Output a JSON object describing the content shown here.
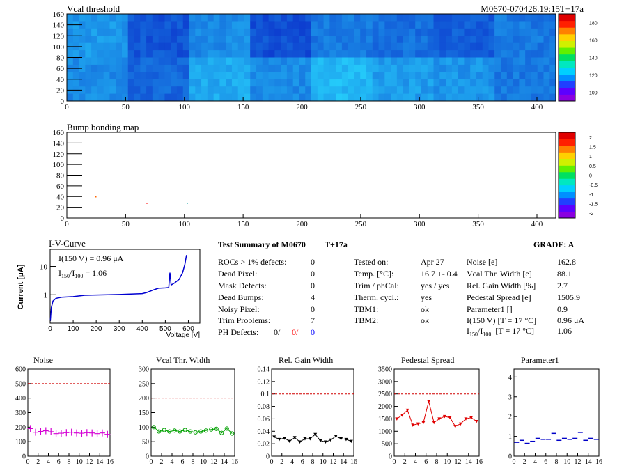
{
  "header": {
    "map1_title": "Vcal threshold",
    "module_tag": "M0670-070426.19:15T+17a",
    "map2_title": "Bump bonding map"
  },
  "maps": {
    "x_ticks": [
      "0",
      "50",
      "100",
      "150",
      "200",
      "250",
      "300",
      "350",
      "400"
    ],
    "y_ticks": [
      "0",
      "20",
      "40",
      "60",
      "80",
      "100",
      "120",
      "140",
      "160"
    ],
    "map1_colorbar": [
      "100",
      "120",
      "140",
      "160",
      "180"
    ],
    "map2_colorbar": [
      "-2",
      "-1.5",
      "-1",
      "-0.5",
      "0",
      "0.5",
      "1",
      "1.5",
      "2"
    ]
  },
  "iv": {
    "title": "I-V-Curve",
    "ylabel": "Current [μA]",
    "xlabel": "Voltage [V]",
    "annot1": "I(150 V) = 0.96 μA",
    "annot2_prefix": "I",
    "annot2_sub1": "150",
    "annot2_mid": "/I",
    "annot2_sub2": "100",
    "annot2_val": " = 1.06",
    "x_ticks": [
      "0",
      "100",
      "200",
      "300",
      "400",
      "500",
      "600"
    ],
    "y_ticks": [
      "1",
      "10"
    ]
  },
  "summary": {
    "title": "Test Summary of M0670",
    "tag": "T+17a",
    "grade": "GRADE:  A",
    "left_labels": [
      "ROCs > 1% defects:",
      "Dead Pixel:",
      "Mask Defects:",
      "Dead Bumps:",
      "Noisy Pixel:",
      "Trim Problems:",
      "PH Defects:"
    ],
    "left_values": [
      "0",
      "0",
      "0",
      "4",
      "0",
      "7"
    ],
    "ph_values": [
      "0/",
      "0/",
      "0"
    ],
    "ph_colors": [
      "#000000",
      "#ff0000",
      "#0000ff"
    ],
    "mid_labels": [
      "Tested on:",
      "Temp. [°C]:",
      "Trim / phCal:",
      "Therm. cycl.:",
      "TBM1:",
      "TBM2:"
    ],
    "mid_values": [
      "Apr 27",
      "16.7 +- 0.4",
      "yes / yes",
      "yes",
      "ok",
      "ok"
    ],
    "right_labels": [
      "Noise [e]",
      "Vcal Thr. Width [e]",
      "Rel. Gain Width [%]",
      "Pedestal Spread [e]",
      "Parameter1 []",
      "I(150 V) [T = 17 °C]"
    ],
    "right_values": [
      "162.8",
      "88.1",
      "2.7",
      "1505.9",
      "0.9",
      "0.96 μA"
    ],
    "ratio_label_i": "I",
    "ratio_label_s1": "150",
    "ratio_label_m": "/I",
    "ratio_label_s2": "100",
    "ratio_label_t": "  [T = 17 °C]",
    "ratio_value": "1.06"
  },
  "chart_data": [
    {
      "type": "scatter",
      "title": "Noise",
      "x": [
        0,
        1,
        2,
        3,
        4,
        5,
        6,
        7,
        8,
        9,
        10,
        11,
        12,
        13,
        14,
        15
      ],
      "values": [
        190,
        165,
        170,
        175,
        168,
        155,
        158,
        162,
        165,
        160,
        158,
        162,
        160,
        155,
        160,
        150
      ],
      "ylim": [
        0,
        600
      ],
      "threshold": 500,
      "y_ticks": [
        "0",
        "100",
        "200",
        "300",
        "400",
        "500",
        "600"
      ],
      "color": "#d400d4",
      "marker": "plus"
    },
    {
      "type": "line",
      "title": "Vcal Thr. Width",
      "x": [
        0,
        1,
        2,
        3,
        4,
        5,
        6,
        7,
        8,
        9,
        10,
        11,
        12,
        13,
        14,
        15
      ],
      "values": [
        100,
        85,
        90,
        85,
        88,
        85,
        90,
        85,
        82,
        85,
        88,
        92,
        94,
        80,
        95,
        78
      ],
      "ylim": [
        0,
        300
      ],
      "threshold": 200,
      "y_ticks": [
        "0",
        "50",
        "100",
        "150",
        "200",
        "250",
        "300"
      ],
      "color": "#00a000",
      "marker": "circle"
    },
    {
      "type": "line",
      "title": "Rel. Gain Width",
      "x": [
        0,
        1,
        2,
        3,
        4,
        5,
        6,
        7,
        8,
        9,
        10,
        11,
        12,
        13,
        14,
        15
      ],
      "values": [
        0.031,
        0.027,
        0.029,
        0.024,
        0.03,
        0.023,
        0.028,
        0.028,
        0.035,
        0.025,
        0.023,
        0.026,
        0.032,
        0.028,
        0.027,
        0.024
      ],
      "ylim": [
        0,
        0.14
      ],
      "threshold": 0.1,
      "y_ticks": [
        "0",
        "0.02",
        "0.04",
        "0.06",
        "0.08",
        "0.1",
        "0.12",
        "0.14"
      ],
      "color": "#000000",
      "marker": "triangle"
    },
    {
      "type": "line",
      "title": "Pedestal Spread",
      "x": [
        0,
        1,
        2,
        3,
        4,
        5,
        6,
        7,
        8,
        9,
        10,
        11,
        12,
        13,
        14,
        15
      ],
      "values": [
        1500,
        1650,
        1850,
        1250,
        1300,
        1350,
        2200,
        1350,
        1500,
        1600,
        1550,
        1200,
        1300,
        1500,
        1550,
        1400
      ],
      "ylim": [
        0,
        3500
      ],
      "threshold": 2500,
      "y_ticks": [
        "0",
        "500",
        "1000",
        "1500",
        "2000",
        "2500",
        "3000",
        "3500"
      ],
      "color": "#e00000",
      "marker": "triangle"
    },
    {
      "type": "scatter",
      "title": "Parameter1",
      "x": [
        0,
        1,
        2,
        3,
        4,
        5,
        6,
        7,
        8,
        9,
        10,
        11,
        12,
        13,
        14,
        15
      ],
      "values": [
        0.7,
        0.8,
        0.65,
        0.75,
        0.9,
        0.85,
        0.85,
        1.15,
        0.8,
        0.9,
        0.85,
        0.9,
        1.2,
        0.8,
        0.9,
        0.85
      ],
      "ylim": [
        0,
        4.4
      ],
      "y_ticks": [
        "0",
        "1",
        "2",
        "3",
        "4"
      ],
      "color": "#0000c8",
      "marker": "dash"
    }
  ],
  "x_ticks_small": [
    "0",
    "2",
    "4",
    "6",
    "8",
    "10",
    "12",
    "14",
    "16"
  ]
}
